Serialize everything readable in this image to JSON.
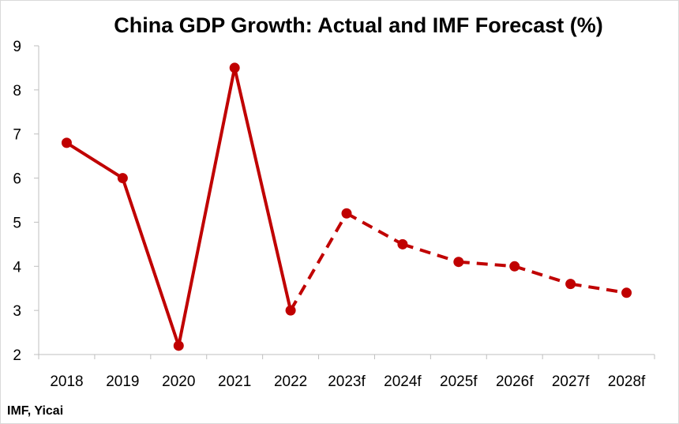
{
  "chart_data": {
    "type": "line",
    "title": "China GDP Growth: Actual and IMF Forecast (%)",
    "xlabel": "",
    "ylabel": "",
    "categories": [
      "2018",
      "2019",
      "2020",
      "2021",
      "2022",
      "2023f",
      "2024f",
      "2025f",
      "2026f",
      "2027f",
      "2028f"
    ],
    "ylim": [
      2,
      9
    ],
    "yticks": [
      "2",
      "3",
      "4",
      "5",
      "6",
      "7",
      "8",
      "9"
    ],
    "grid": false,
    "legend": "none",
    "series": [
      {
        "values": [
          6.8,
          6.0,
          2.2,
          8.5,
          3.0,
          5.2,
          4.5,
          4.1,
          4.0,
          3.6,
          3.4
        ],
        "actual_through_index": 4,
        "color": "#c00000",
        "actual_style": "solid",
        "forecast_style": "dashed"
      }
    ],
    "source_note": "IMF, Yicai"
  }
}
